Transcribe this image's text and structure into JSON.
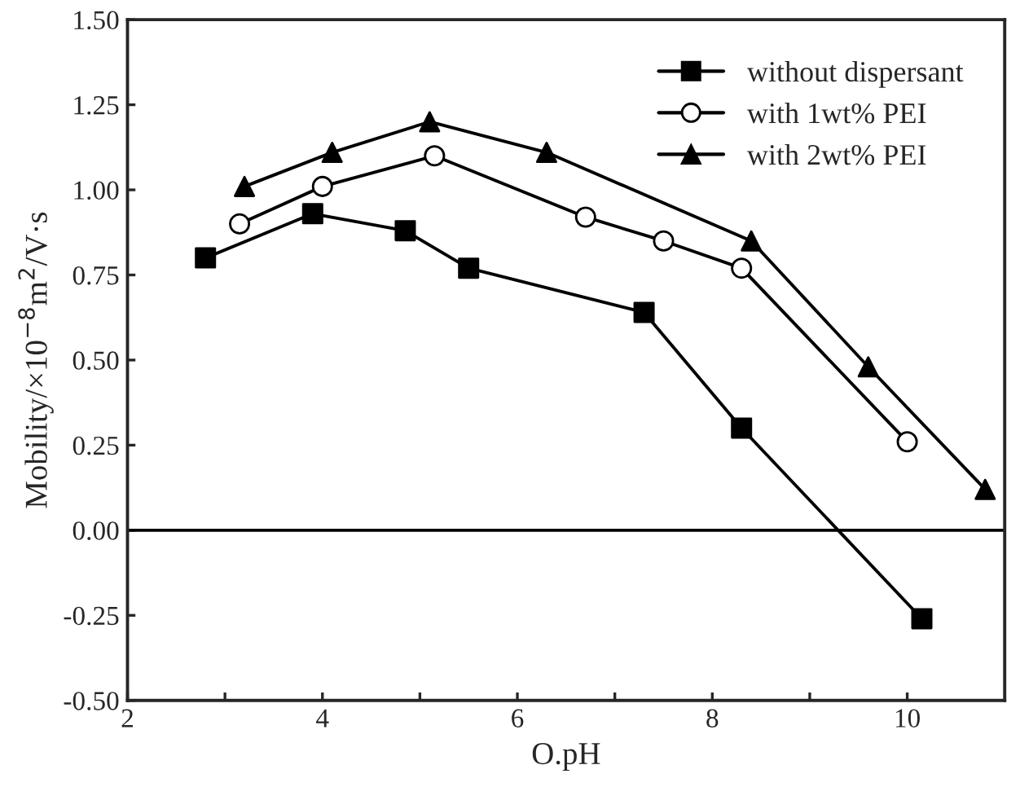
{
  "chart_data": {
    "type": "line",
    "xlabel": "O.pH",
    "ylabel": "Mobility/×10$^{−8}$m$^{2}$/V·s",
    "xlim": [
      2,
      11
    ],
    "ylim": [
      -0.5,
      1.5
    ],
    "xticks": [
      2,
      {
        "value": 3,
        "label": null
      },
      4,
      {
        "value": 5,
        "label": null
      },
      6,
      {
        "value": 7,
        "label": null
      },
      8,
      {
        "value": 9,
        "label": null
      },
      10
    ],
    "yticks": [
      {
        "value": -0.5,
        "label": "-0.50"
      },
      {
        "value": -0.25,
        "label": "-0.25"
      },
      {
        "value": 0,
        "label": "0.00"
      },
      {
        "value": 0.25,
        "label": "0.25"
      },
      {
        "value": 0.5,
        "label": "0.50"
      },
      {
        "value": 0.75,
        "label": "0.75"
      },
      {
        "value": 1.0,
        "label": "1.00"
      },
      {
        "value": 1.25,
        "label": "1.25"
      },
      {
        "value": 1.5,
        "label": "1.50"
      }
    ],
    "ref_lines": [
      {
        "axis": "y",
        "value": 0,
        "color": "#000000"
      }
    ],
    "legend": "top right",
    "grid": false,
    "line_style": "solid",
    "series": [
      {
        "name": "without dispersant",
        "color": "#000000",
        "marker": "square",
        "x": [
          2.8,
          3.9,
          4.85,
          5.5,
          7.3,
          8.3,
          10.15
        ],
        "values": [
          0.8,
          0.93,
          0.88,
          0.77,
          0.64,
          0.3,
          -0.26
        ]
      },
      {
        "name": "with 1wt% PEI",
        "color": "#000000",
        "marker": "circle",
        "x": [
          3.15,
          4.0,
          5.15,
          6.7,
          7.5,
          8.3,
          10.0
        ],
        "values": [
          0.9,
          1.01,
          1.1,
          0.92,
          0.85,
          0.77,
          0.26
        ]
      },
      {
        "name": "with 2wt% PEI",
        "color": "#000000",
        "marker": "triangle",
        "x": [
          3.2,
          4.1,
          5.1,
          6.3,
          8.4,
          9.6,
          10.8
        ],
        "values": [
          1.01,
          1.11,
          1.2,
          1.11,
          0.85,
          0.48,
          0.12
        ]
      }
    ]
  }
}
